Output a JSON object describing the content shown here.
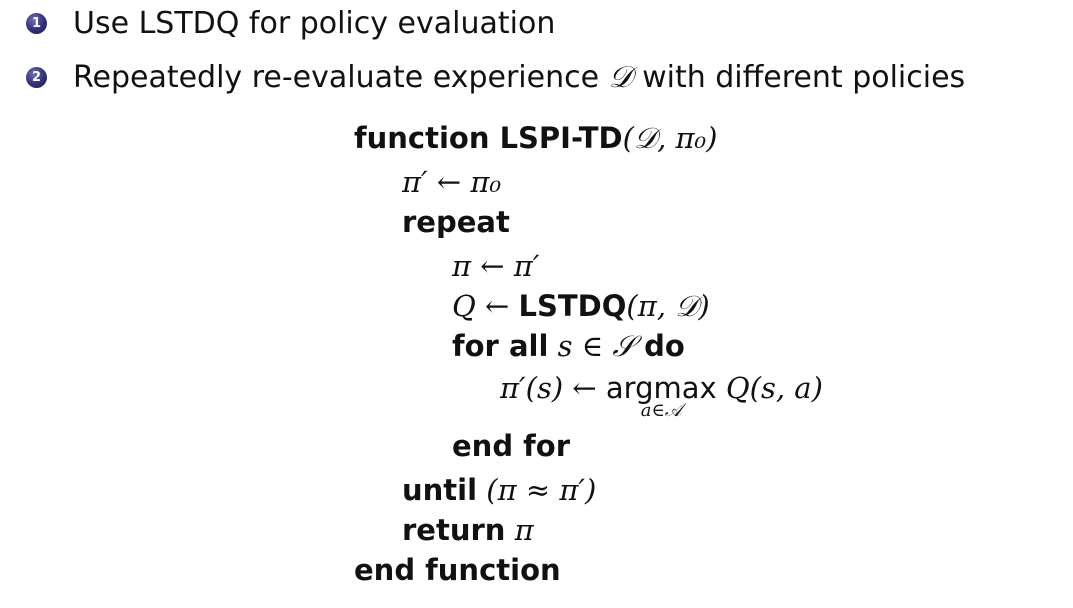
{
  "bullets": [
    {
      "number": "1",
      "text": "Use LSTDQ for policy evaluation"
    },
    {
      "number": "2",
      "text_before": "Repeatedly re-evaluate experience ",
      "symbol": "𝒟",
      "text_after": " with different policies"
    }
  ],
  "algorithm": {
    "line1_kw": "function LSPI-TD",
    "line1_args": "(𝒟, π₀)",
    "line2": "π′ ← π₀",
    "line3_kw": "repeat",
    "line4": "π ← π′",
    "line5_pre": "Q ← ",
    "line5_kw": "LSTDQ",
    "line5_args": "(π, 𝒟)",
    "line6_kw1": "for all",
    "line6_mid": " s ∈ 𝒮 ",
    "line6_kw2": "do",
    "line7_pre": "π′(s) ← ",
    "line7_op": "argmax",
    "line7_sub": "a∈𝒜",
    "line7_post": " Q(s, a)",
    "line8_kw": "end for",
    "line9_kw": "until",
    "line9_rest": " (π ≈ π′)",
    "line10_kw": "return",
    "line10_rest": " π",
    "line11_kw": "end function"
  },
  "colors": {
    "bullet_circle": "#2f2f7a",
    "text": "#111111"
  }
}
